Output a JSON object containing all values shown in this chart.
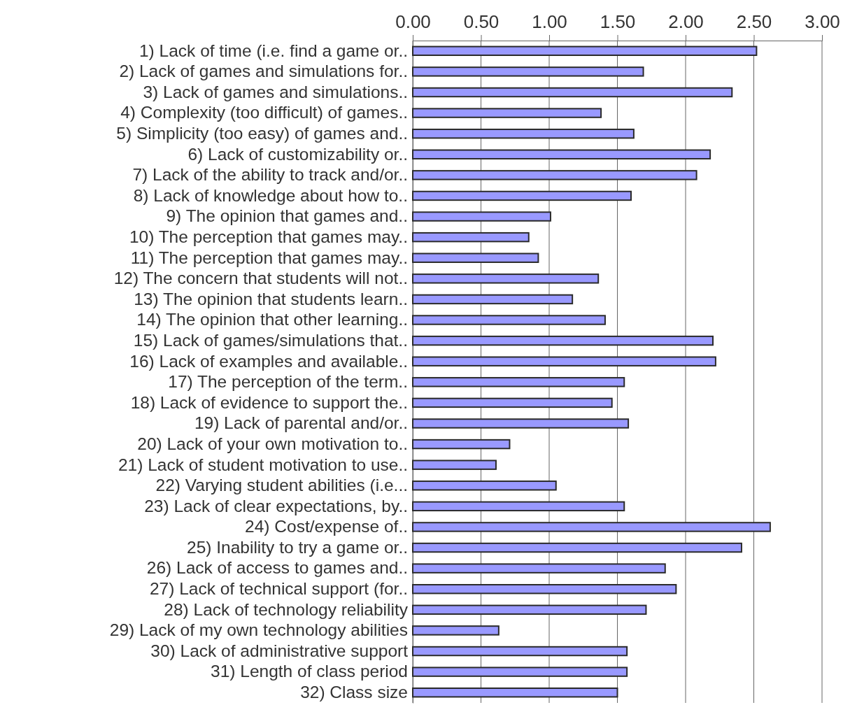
{
  "chart_data": {
    "type": "bar",
    "orientation": "horizontal",
    "categories": [
      "1) Lack of time (i.e. find a game or..",
      "2) Lack of games and simulations for..",
      "3) Lack of games and simulations..",
      "4) Complexity (too difficult) of games..",
      "5) Simplicity (too easy) of games and..",
      "6) Lack of customizability or..",
      "7) Lack of the ability to track and/or..",
      "8) Lack of knowledge about how to..",
      "9) The opinion that games and..",
      "10) The perception that games may..",
      "11) The perception that games may..",
      "12) The concern that students will not..",
      "13) The opinion that students learn..",
      "14) The opinion that other learning..",
      "15) Lack of games/simulations that..",
      "16) Lack of examples and available..",
      "17) The perception of the term..",
      "18) Lack of evidence to support the..",
      "19) Lack of parental and/or..",
      "20) Lack of your own motivation to..",
      "21) Lack of student motivation to use..",
      "22) Varying student abilities (i.e...",
      "23) Lack of clear expectations, by..",
      "24) Cost/expense of..",
      "25) Inability to try a game or..",
      "26) Lack of access to games and..",
      "27) Lack of technical support (for..",
      "28) Lack of technology reliability",
      "29) Lack of my own technology abilities",
      "30) Lack of administrative support",
      "31) Length of class period",
      "32) Class size"
    ],
    "values": [
      2.52,
      1.69,
      2.34,
      1.38,
      1.62,
      2.18,
      2.08,
      1.6,
      1.01,
      0.85,
      0.92,
      1.36,
      1.17,
      1.41,
      2.2,
      2.22,
      1.55,
      1.46,
      1.58,
      0.71,
      0.61,
      1.05,
      1.55,
      2.62,
      2.41,
      1.85,
      1.93,
      1.71,
      0.63,
      1.57,
      1.57,
      1.5
    ],
    "color": "#9999ff",
    "xlim": [
      0,
      3
    ],
    "xticks": [
      {
        "value": 0,
        "label": "0.00"
      },
      {
        "value": 0.5,
        "label": "0.50"
      },
      {
        "value": 1,
        "label": "1.00"
      },
      {
        "value": 1.5,
        "label": "1.50"
      },
      {
        "value": 2,
        "label": "2.00"
      },
      {
        "value": 2.5,
        "label": "2.50"
      },
      {
        "value": 3,
        "label": "3.00"
      }
    ],
    "grid": "x"
  }
}
